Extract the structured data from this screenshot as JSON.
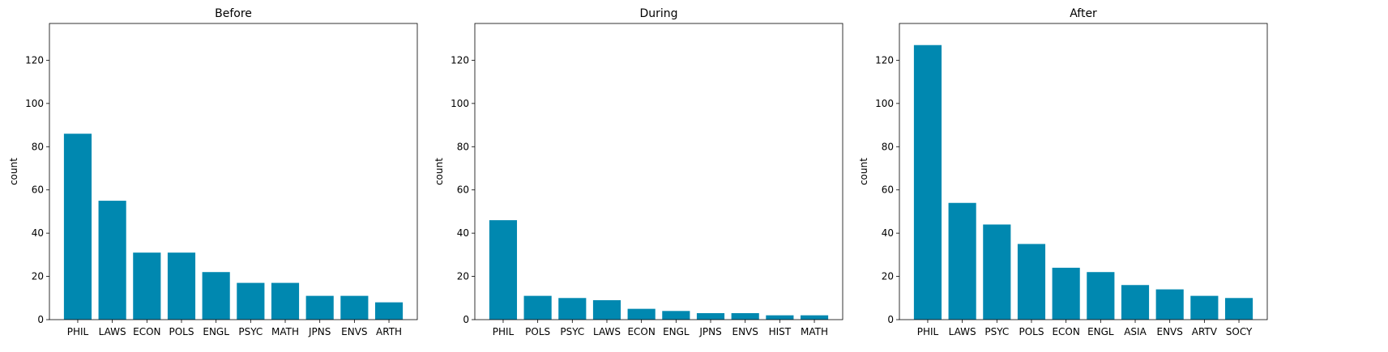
{
  "chart_data": [
    {
      "type": "bar",
      "title": "Before",
      "xlabel": "",
      "ylabel": "count",
      "ylim": [
        0,
        137
      ],
      "yticks": [
        0,
        20,
        40,
        60,
        80,
        100,
        120
      ],
      "bar_color": "#0088b0",
      "categories": [
        "PHIL",
        "LAWS",
        "ECON",
        "POLS",
        "ENGL",
        "PSYC",
        "MATH",
        "JPNS",
        "ENVS",
        "ARTH"
      ],
      "values": [
        86,
        55,
        31,
        31,
        22,
        17,
        17,
        11,
        11,
        8
      ]
    },
    {
      "type": "bar",
      "title": "During",
      "xlabel": "",
      "ylabel": "count",
      "ylim": [
        0,
        137
      ],
      "yticks": [
        0,
        20,
        40,
        60,
        80,
        100,
        120
      ],
      "bar_color": "#0088b0",
      "categories": [
        "PHIL",
        "POLS",
        "PSYC",
        "LAWS",
        "ECON",
        "ENGL",
        "JPNS",
        "ENVS",
        "HIST",
        "MATH"
      ],
      "values": [
        46,
        11,
        10,
        9,
        5,
        4,
        3,
        3,
        2,
        2
      ]
    },
    {
      "type": "bar",
      "title": "After",
      "xlabel": "",
      "ylabel": "count",
      "ylim": [
        0,
        137
      ],
      "yticks": [
        0,
        20,
        40,
        60,
        80,
        100,
        120
      ],
      "bar_color": "#0088b0",
      "categories": [
        "PHIL",
        "LAWS",
        "PSYC",
        "POLS",
        "ECON",
        "ENGL",
        "ASIA",
        "ENVS",
        "ARTV",
        "SOCY"
      ],
      "values": [
        127,
        54,
        44,
        35,
        24,
        22,
        16,
        14,
        11,
        10
      ]
    }
  ]
}
